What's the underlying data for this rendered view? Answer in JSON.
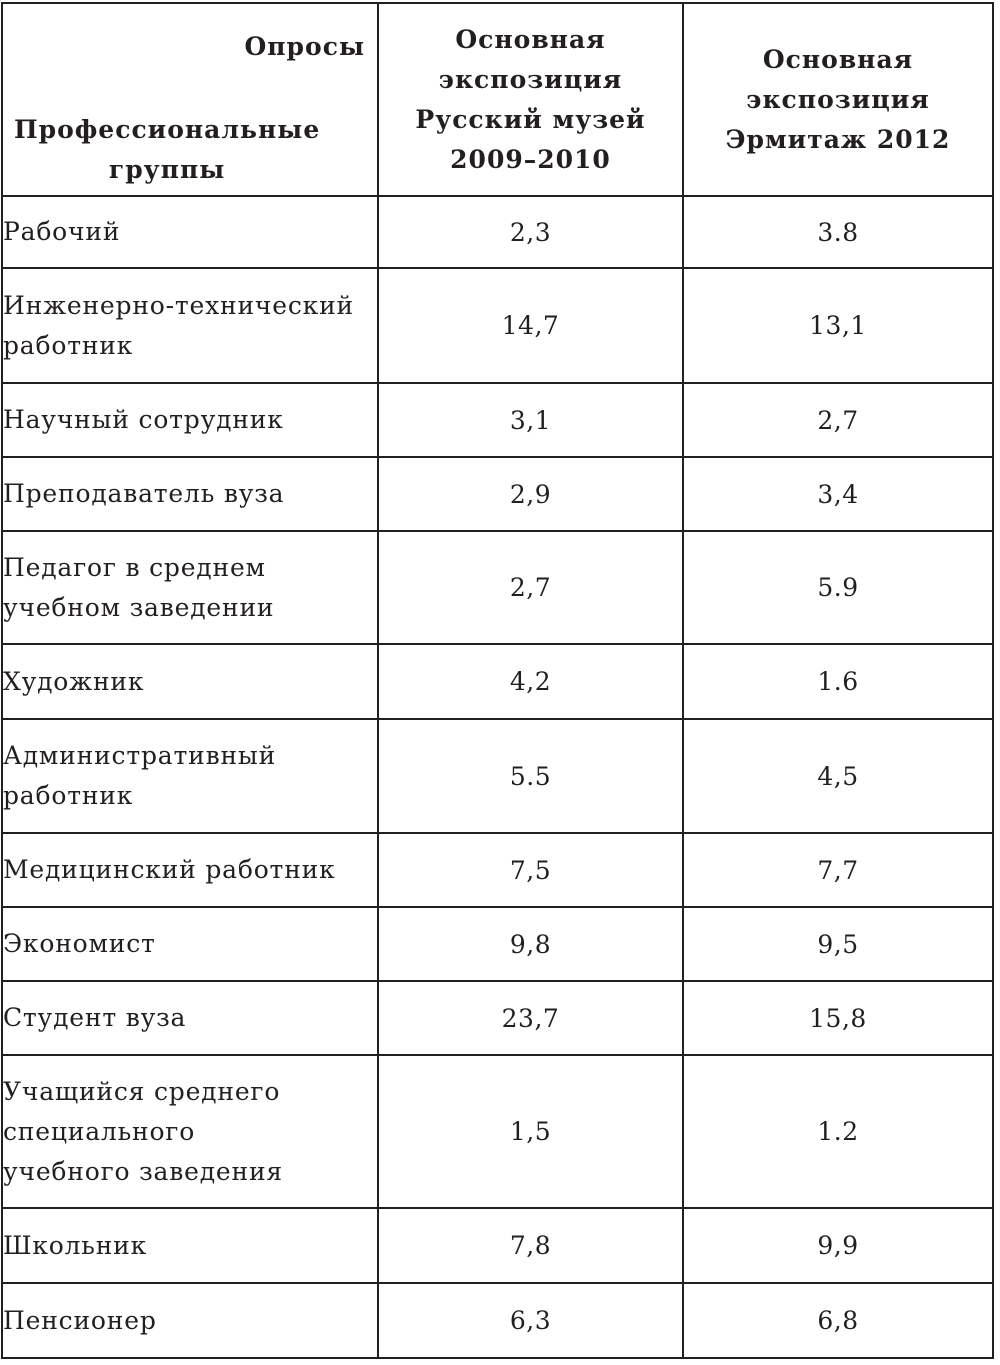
{
  "table": {
    "header": {
      "corner_top": "Опросы",
      "corner_bottom": [
        "Профессиональные",
        "группы"
      ],
      "columns": [
        [
          "Основная",
          "экспозиция",
          "Русский музей",
          "2009–2010"
        ],
        [
          "Основная",
          "экспозиция",
          "Эрмитаж 2012"
        ]
      ]
    },
    "rows": [
      {
        "group": [
          "Рабочий"
        ],
        "values": [
          "2,3",
          "3.8"
        ]
      },
      {
        "group": [
          "Инженерно-технический",
          "работник"
        ],
        "values": [
          "14,7",
          "13,1"
        ]
      },
      {
        "group": [
          "Научный сотрудник"
        ],
        "values": [
          "3,1",
          "2,7"
        ]
      },
      {
        "group": [
          "Преподаватель вуза"
        ],
        "values": [
          "2,9",
          "3,4"
        ]
      },
      {
        "group": [
          "Педагог в среднем",
          "учебном заведении"
        ],
        "values": [
          "2,7",
          "5.9"
        ]
      },
      {
        "group": [
          "Художник"
        ],
        "values": [
          "4,2",
          "1.6"
        ]
      },
      {
        "group": [
          "Административный",
          "работник"
        ],
        "values": [
          "5.5",
          "4,5"
        ]
      },
      {
        "group": [
          "Медицинский работник"
        ],
        "values": [
          "7,5",
          "7,7"
        ]
      },
      {
        "group": [
          "Экономист"
        ],
        "values": [
          "9,8",
          "9,5"
        ]
      },
      {
        "group": [
          "Студент вуза"
        ],
        "values": [
          "23,7",
          "15,8"
        ]
      },
      {
        "group": [
          "Учащийся среднего",
          "специального",
          "учебного заведения"
        ],
        "values": [
          "1,5",
          "1.2"
        ]
      },
      {
        "group": [
          "Школьник"
        ],
        "values": [
          "7,8",
          "9,9"
        ]
      },
      {
        "group": [
          "Пенсионер"
        ],
        "values": [
          "6,3",
          "6,8"
        ]
      }
    ]
  }
}
